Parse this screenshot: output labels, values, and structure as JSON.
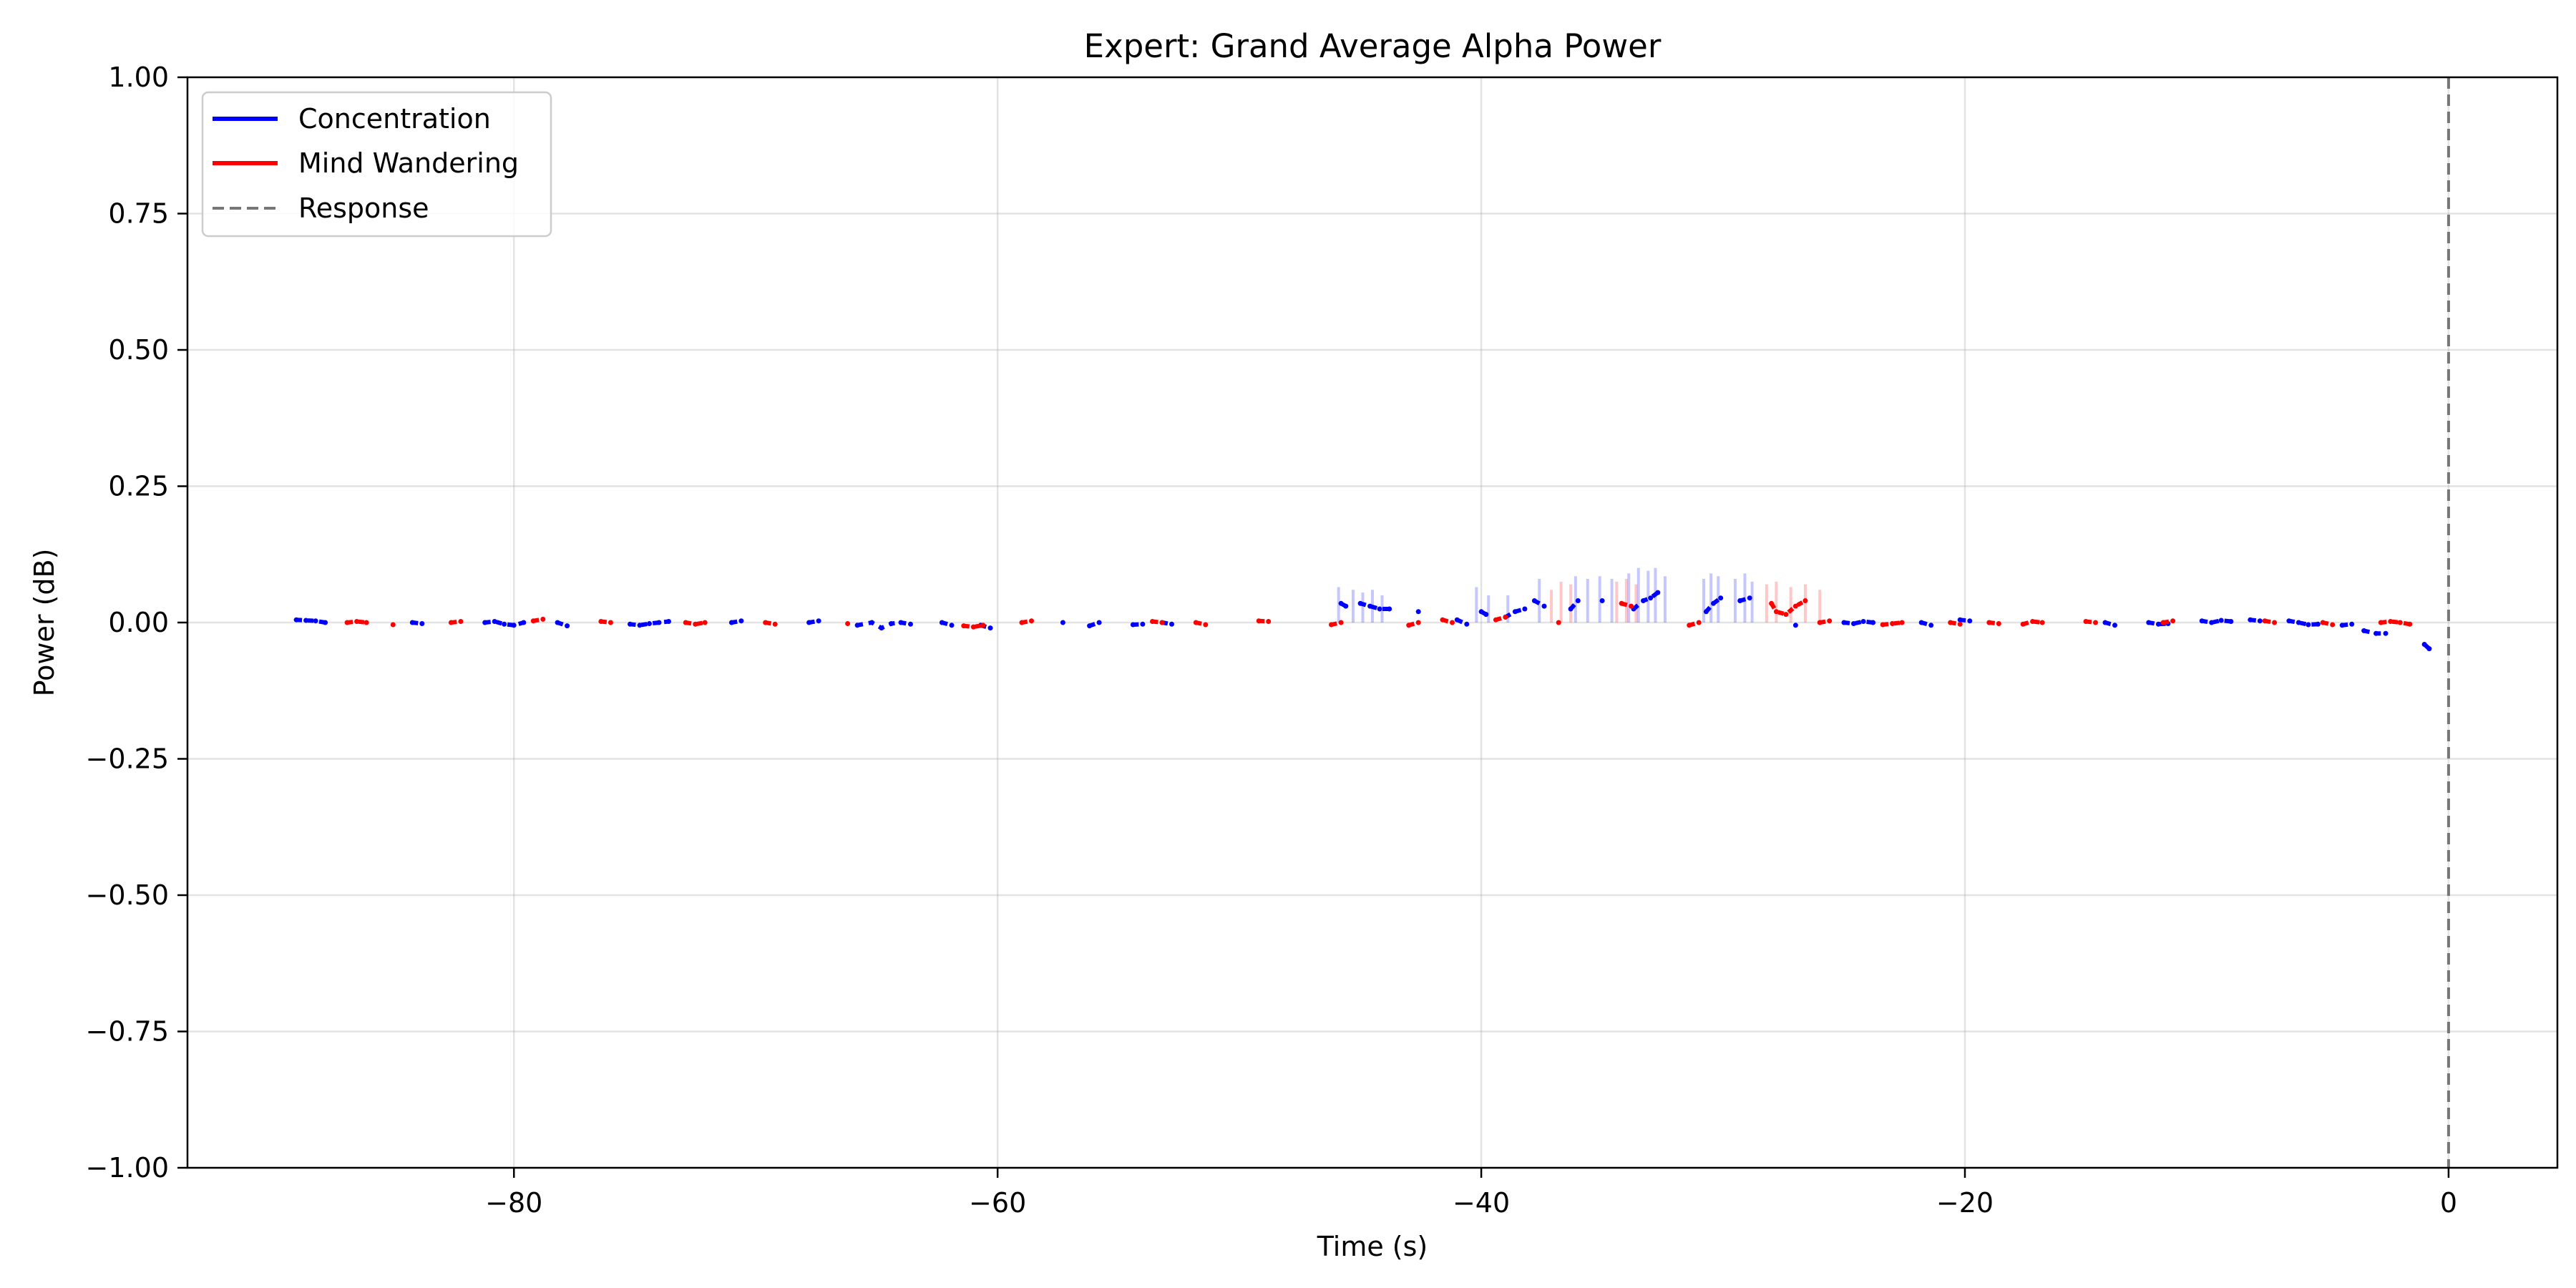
{
  "chart_data": {
    "type": "line",
    "title": "Expert: Grand Average Alpha Power",
    "xlabel": "Time (s)",
    "ylabel": "Power (dB)",
    "xlim": [
      -93.5,
      4.5
    ],
    "ylim": [
      -1.0,
      1.0
    ],
    "xticks": [
      -80,
      -60,
      -40,
      -20,
      0
    ],
    "xtick_labels": [
      "−80",
      "−60",
      "−40",
      "−20",
      "0"
    ],
    "yticks": [
      -1.0,
      -0.75,
      -0.5,
      -0.25,
      0.0,
      0.25,
      0.5,
      0.75,
      1.0
    ],
    "ytick_labels": [
      "−1.00",
      "−0.75",
      "−0.50",
      "−0.25",
      "0.00",
      "0.25",
      "0.50",
      "0.75",
      "1.00"
    ],
    "grid": true,
    "legend_position": "top-left",
    "legend": [
      {
        "label": "Concentration",
        "color": "#0000ff",
        "style": "solid"
      },
      {
        "label": "Mind Wandering",
        "color": "#ff0000",
        "style": "solid"
      },
      {
        "label": "Response",
        "color": "#777777",
        "style": "dashed"
      }
    ],
    "response_x": 0,
    "series": [
      {
        "name": "Concentration",
        "color": "#0000ff",
        "segments": [
          {
            "x": [
              -89.0,
              -88.6,
              -88.2,
              -87.8
            ],
            "y": [
              0.005,
              0.004,
              0.003,
              0.0
            ]
          },
          {
            "x": [
              -84.2,
              -83.8
            ],
            "y": [
              0.0,
              -0.002
            ]
          },
          {
            "x": [
              -81.2,
              -80.8,
              -80.4,
              -80.0,
              -79.6
            ],
            "y": [
              0.0,
              0.002,
              -0.003,
              -0.005,
              0.0
            ]
          },
          {
            "x": [
              -78.2,
              -77.8
            ],
            "y": [
              0.0,
              -0.006
            ]
          },
          {
            "x": [
              -75.2,
              -74.8,
              -74.4,
              -74.0,
              -73.6
            ],
            "y": [
              -0.003,
              -0.005,
              -0.002,
              0.0,
              0.002
            ]
          },
          {
            "x": [
              -71.0,
              -70.6
            ],
            "y": [
              0.0,
              0.003
            ]
          },
          {
            "x": [
              -67.8,
              -67.4
            ],
            "y": [
              0.0,
              0.003
            ]
          },
          {
            "x": [
              -65.8,
              -65.2,
              -64.8,
              -64.4,
              -64.0,
              -63.6
            ],
            "y": [
              -0.005,
              0.0,
              -0.01,
              -0.002,
              0.0,
              -0.003
            ]
          },
          {
            "x": [
              -62.3,
              -61.9
            ],
            "y": [
              0.0,
              -0.005
            ]
          },
          {
            "x": [
              -60.7,
              -60.3
            ],
            "y": [
              -0.005,
              -0.01
            ]
          },
          {
            "x": [
              -57.3
            ],
            "y": [
              0.0
            ]
          },
          {
            "x": [
              -56.2,
              -55.8
            ],
            "y": [
              -0.006,
              0.0
            ]
          },
          {
            "x": [
              -54.4,
              -54.0
            ],
            "y": [
              -0.004,
              -0.003
            ]
          },
          {
            "x": [
              -53.2,
              -52.8
            ],
            "y": [
              0.0,
              -0.003
            ]
          },
          {
            "x": [
              -45.8,
              -45.6
            ],
            "y": [
              0.035,
              0.03
            ]
          },
          {
            "x": [
              -45.0,
              -44.6,
              -44.2,
              -43.8
            ],
            "y": [
              0.035,
              0.03,
              0.025,
              0.025
            ]
          },
          {
            "x": [
              -42.6
            ],
            "y": [
              0.02
            ]
          },
          {
            "x": [
              -41.0,
              -40.6
            ],
            "y": [
              0.005,
              -0.003
            ]
          },
          {
            "x": [
              -40.0,
              -39.8
            ],
            "y": [
              0.02,
              0.015
            ]
          },
          {
            "x": [
              -39.0,
              -38.6,
              -38.2
            ],
            "y": [
              0.01,
              0.02,
              0.025
            ]
          },
          {
            "x": [
              -37.8,
              -37.4
            ],
            "y": [
              0.04,
              0.03
            ]
          },
          {
            "x": [
              -36.3,
              -36.0
            ],
            "y": [
              0.025,
              0.04
            ]
          },
          {
            "x": [
              -35.0
            ],
            "y": [
              0.04
            ]
          },
          {
            "x": [
              -33.7,
              -33.3,
              -33.0,
              -32.7
            ],
            "y": [
              0.025,
              0.04,
              0.045,
              0.055
            ]
          },
          {
            "x": [
              -30.7,
              -30.4,
              -30.1
            ],
            "y": [
              0.02,
              0.035,
              0.045
            ]
          },
          {
            "x": [
              -29.3,
              -28.9
            ],
            "y": [
              0.04,
              0.045
            ]
          },
          {
            "x": [
              -27.0
            ],
            "y": [
              -0.005
            ]
          },
          {
            "x": [
              -25.0,
              -24.6,
              -24.2,
              -23.8
            ],
            "y": [
              0.0,
              -0.002,
              0.002,
              0.0
            ]
          },
          {
            "x": [
              -21.8,
              -21.4
            ],
            "y": [
              0.0,
              -0.005
            ]
          },
          {
            "x": [
              -20.2,
              -19.8
            ],
            "y": [
              0.005,
              0.003
            ]
          },
          {
            "x": [
              -14.2,
              -13.8
            ],
            "y": [
              0.0,
              -0.005
            ]
          },
          {
            "x": [
              -12.4,
              -12.0,
              -11.6
            ],
            "y": [
              0.0,
              -0.003,
              -0.002
            ]
          },
          {
            "x": [
              -10.2,
              -9.8,
              -9.4,
              -9.0
            ],
            "y": [
              0.003,
              0.0,
              0.004,
              0.002
            ]
          },
          {
            "x": [
              -8.2,
              -7.8
            ],
            "y": [
              0.005,
              0.003
            ]
          },
          {
            "x": [
              -6.6,
              -6.2,
              -5.8,
              -5.4
            ],
            "y": [
              0.003,
              0.0,
              -0.004,
              -0.003
            ]
          },
          {
            "x": [
              -4.4,
              -4.0
            ],
            "y": [
              -0.005,
              -0.003
            ]
          },
          {
            "x": [
              -3.5,
              -3.0,
              -2.6
            ],
            "y": [
              -0.015,
              -0.02,
              -0.02
            ]
          },
          {
            "x": [
              -1.0,
              -0.8
            ],
            "y": [
              -0.04,
              -0.048
            ]
          }
        ],
        "shaded": [
          {
            "x": -45.9,
            "lo": 0.0,
            "hi": 0.065
          },
          {
            "x": -45.3,
            "lo": 0.0,
            "hi": 0.06
          },
          {
            "x": -44.9,
            "lo": 0.0,
            "hi": 0.055
          },
          {
            "x": -44.5,
            "lo": 0.0,
            "hi": 0.06
          },
          {
            "x": -44.1,
            "lo": 0.0,
            "hi": 0.05
          },
          {
            "x": -40.2,
            "lo": 0.0,
            "hi": 0.065
          },
          {
            "x": -39.7,
            "lo": 0.0,
            "hi": 0.05
          },
          {
            "x": -38.9,
            "lo": 0.0,
            "hi": 0.05
          },
          {
            "x": -37.6,
            "lo": 0.0,
            "hi": 0.08
          },
          {
            "x": -36.1,
            "lo": 0.0,
            "hi": 0.085
          },
          {
            "x": -35.6,
            "lo": 0.0,
            "hi": 0.08
          },
          {
            "x": -35.1,
            "lo": 0.0,
            "hi": 0.085
          },
          {
            "x": -34.6,
            "lo": 0.0,
            "hi": 0.08
          },
          {
            "x": -33.9,
            "lo": 0.0,
            "hi": 0.09
          },
          {
            "x": -33.5,
            "lo": 0.0,
            "hi": 0.1
          },
          {
            "x": -33.1,
            "lo": 0.0,
            "hi": 0.095
          },
          {
            "x": -32.8,
            "lo": 0.0,
            "hi": 0.1
          },
          {
            "x": -32.4,
            "lo": 0.0,
            "hi": 0.085
          },
          {
            "x": -30.8,
            "lo": 0.0,
            "hi": 0.08
          },
          {
            "x": -30.5,
            "lo": 0.0,
            "hi": 0.09
          },
          {
            "x": -30.2,
            "lo": 0.0,
            "hi": 0.085
          },
          {
            "x": -29.5,
            "lo": 0.0,
            "hi": 0.08
          },
          {
            "x": -29.1,
            "lo": 0.0,
            "hi": 0.09
          },
          {
            "x": -28.8,
            "lo": 0.0,
            "hi": 0.075
          }
        ]
      },
      {
        "name": "Mind Wandering",
        "color": "#ff0000",
        "segments": [
          {
            "x": [
              -86.9,
              -86.5,
              -86.1
            ],
            "y": [
              0.0,
              0.002,
              0.0
            ]
          },
          {
            "x": [
              -85.0
            ],
            "y": [
              -0.004
            ]
          },
          {
            "x": [
              -82.6,
              -82.2
            ],
            "y": [
              0.0,
              0.002
            ]
          },
          {
            "x": [
              -79.2,
              -78.8
            ],
            "y": [
              0.003,
              0.006
            ]
          },
          {
            "x": [
              -76.4,
              -76.0
            ],
            "y": [
              0.002,
              0.0
            ]
          },
          {
            "x": [
              -72.9,
              -72.5,
              -72.1
            ],
            "y": [
              0.0,
              -0.003,
              0.0
            ]
          },
          {
            "x": [
              -69.6,
              -69.2
            ],
            "y": [
              0.0,
              -0.003
            ]
          },
          {
            "x": [
              -66.2
            ],
            "y": [
              -0.002
            ]
          },
          {
            "x": [
              -61.4,
              -61.0,
              -60.6
            ],
            "y": [
              -0.006,
              -0.008,
              -0.005
            ]
          },
          {
            "x": [
              -59.0,
              -58.6
            ],
            "y": [
              0.0,
              0.003
            ]
          },
          {
            "x": [
              -53.6,
              -53.2
            ],
            "y": [
              0.002,
              0.0
            ]
          },
          {
            "x": [
              -51.8,
              -51.4
            ],
            "y": [
              0.0,
              -0.004
            ]
          },
          {
            "x": [
              -49.2,
              -48.8
            ],
            "y": [
              0.003,
              0.002
            ]
          },
          {
            "x": [
              -46.2,
              -45.8
            ],
            "y": [
              -0.004,
              0.0
            ]
          },
          {
            "x": [
              -43.0,
              -42.6
            ],
            "y": [
              -0.005,
              0.0
            ]
          },
          {
            "x": [
              -41.6,
              -41.2
            ],
            "y": [
              0.005,
              0.0
            ]
          },
          {
            "x": [
              -39.4,
              -39.0
            ],
            "y": [
              0.005,
              0.01
            ]
          },
          {
            "x": [
              -36.8
            ],
            "y": [
              0.0
            ]
          },
          {
            "x": [
              -34.2,
              -33.8
            ],
            "y": [
              0.035,
              0.03
            ]
          },
          {
            "x": [
              -31.4,
              -31.0
            ],
            "y": [
              -0.005,
              0.0
            ]
          },
          {
            "x": [
              -28.0,
              -27.8,
              -27.4,
              -27.0,
              -26.6
            ],
            "y": [
              0.035,
              0.02,
              0.015,
              0.03,
              0.04
            ]
          },
          {
            "x": [
              -26.0,
              -25.6
            ],
            "y": [
              0.0,
              0.003
            ]
          },
          {
            "x": [
              -23.4,
              -23.0,
              -22.6
            ],
            "y": [
              -0.004,
              -0.002,
              0.0
            ]
          },
          {
            "x": [
              -20.6,
              -20.2
            ],
            "y": [
              0.0,
              -0.003
            ]
          },
          {
            "x": [
              -19.0,
              -18.6
            ],
            "y": [
              0.0,
              -0.002
            ]
          },
          {
            "x": [
              -17.6,
              -17.2,
              -16.8
            ],
            "y": [
              -0.003,
              0.002,
              0.0
            ]
          },
          {
            "x": [
              -15.0,
              -14.6
            ],
            "y": [
              0.002,
              0.0
            ]
          },
          {
            "x": [
              -11.8,
              -11.4
            ],
            "y": [
              0.0,
              0.003
            ]
          },
          {
            "x": [
              -7.6,
              -7.2
            ],
            "y": [
              0.003,
              0.0
            ]
          },
          {
            "x": [
              -5.2,
              -4.8
            ],
            "y": [
              0.0,
              -0.004
            ]
          },
          {
            "x": [
              -2.8,
              -2.4,
              -2.0,
              -1.6
            ],
            "y": [
              0.0,
              0.002,
              0.0,
              -0.003
            ]
          }
        ],
        "shaded": [
          {
            "x": -37.1,
            "lo": 0.0,
            "hi": 0.06
          },
          {
            "x": -36.7,
            "lo": 0.0,
            "hi": 0.075
          },
          {
            "x": -36.3,
            "lo": 0.0,
            "hi": 0.07
          },
          {
            "x": -34.4,
            "lo": 0.0,
            "hi": 0.075
          },
          {
            "x": -34.0,
            "lo": 0.0,
            "hi": 0.08
          },
          {
            "x": -33.6,
            "lo": 0.0,
            "hi": 0.07
          },
          {
            "x": -28.2,
            "lo": 0.0,
            "hi": 0.07
          },
          {
            "x": -27.8,
            "lo": 0.0,
            "hi": 0.075
          },
          {
            "x": -27.2,
            "lo": 0.0,
            "hi": 0.065
          },
          {
            "x": -26.6,
            "lo": 0.0,
            "hi": 0.07
          },
          {
            "x": -26.0,
            "lo": 0.0,
            "hi": 0.06
          }
        ]
      }
    ]
  }
}
